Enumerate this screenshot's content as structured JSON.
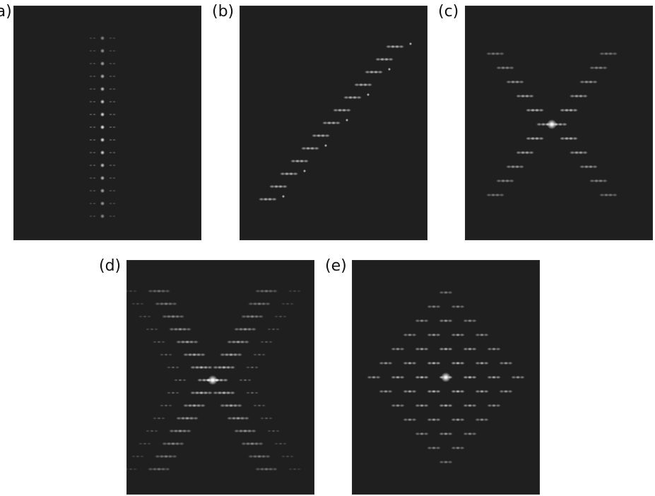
{
  "figure": {
    "panels": [
      {
        "id": "a",
        "label": "(a)",
        "pattern": "vertical-line"
      },
      {
        "id": "b",
        "label": "(b)",
        "pattern": "diagonal-line"
      },
      {
        "id": "c",
        "label": "(c)",
        "pattern": "x-cross"
      },
      {
        "id": "d",
        "label": "(d)",
        "pattern": "x-cross-dense"
      },
      {
        "id": "e",
        "label": "(e)",
        "pattern": "diamond-lattice"
      }
    ]
  },
  "colors": {
    "panel_background": "#1f1f1f",
    "spot": "#ffffff",
    "label_text": "#111111",
    "page_background": "#ffffff"
  }
}
